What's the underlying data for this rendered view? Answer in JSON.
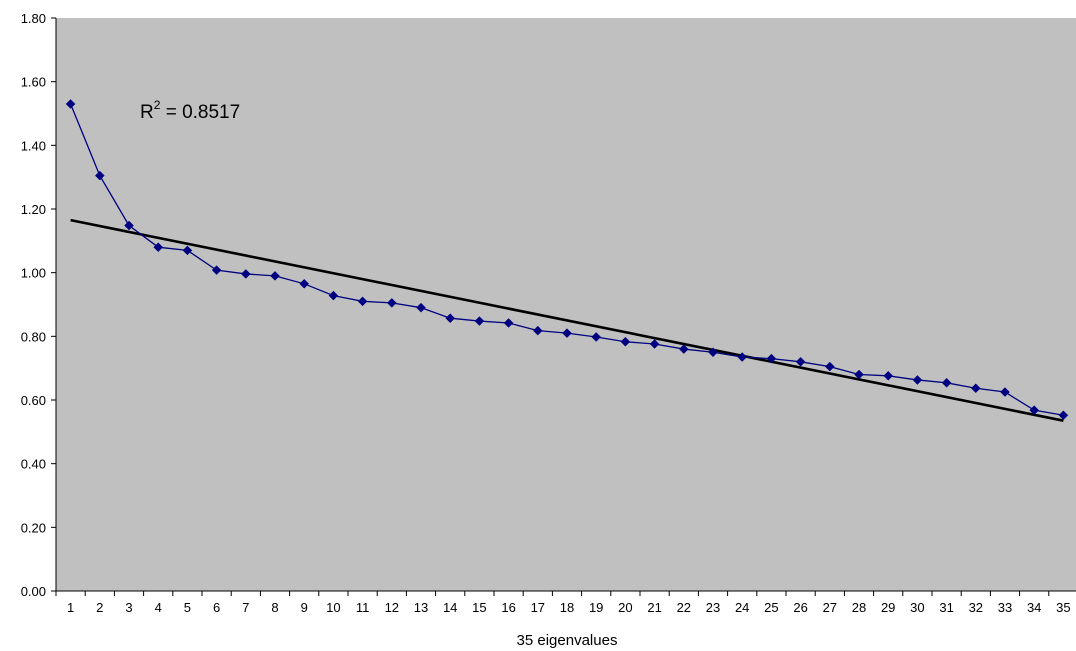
{
  "chart_data": {
    "type": "line",
    "title": "",
    "xlabel": "35 eigenvalues",
    "ylabel": "",
    "categories": [
      "1",
      "2",
      "3",
      "4",
      "5",
      "6",
      "7",
      "8",
      "9",
      "10",
      "11",
      "12",
      "13",
      "14",
      "15",
      "16",
      "17",
      "18",
      "19",
      "20",
      "21",
      "22",
      "23",
      "24",
      "25",
      "26",
      "27",
      "28",
      "29",
      "30",
      "31",
      "32",
      "33",
      "34",
      "35"
    ],
    "series": [
      {
        "values": [
          1.53,
          1.305,
          1.148,
          1.08,
          1.07,
          1.008,
          0.996,
          0.99,
          0.965,
          0.928,
          0.91,
          0.905,
          0.89,
          0.857,
          0.848,
          0.842,
          0.818,
          0.81,
          0.798,
          0.783,
          0.776,
          0.76,
          0.75,
          0.735,
          0.73,
          0.72,
          0.705,
          0.68,
          0.676,
          0.663,
          0.654,
          0.637,
          0.625,
          0.568,
          0.552
        ],
        "color": "#000080",
        "marker": "diamond"
      }
    ],
    "trendline": {
      "type": "linear",
      "start": [
        1,
        1.165
      ],
      "end": [
        35,
        0.535
      ],
      "color": "#000000",
      "r2_label": "0.8517"
    },
    "yticks": [
      "0.00",
      "0.20",
      "0.40",
      "0.60",
      "0.80",
      "1.00",
      "1.20",
      "1.40",
      "1.60",
      "1.80"
    ],
    "ylim": [
      0,
      1.8
    ],
    "grid": false,
    "legend": "none",
    "plot_background": "#c0c0c0"
  }
}
